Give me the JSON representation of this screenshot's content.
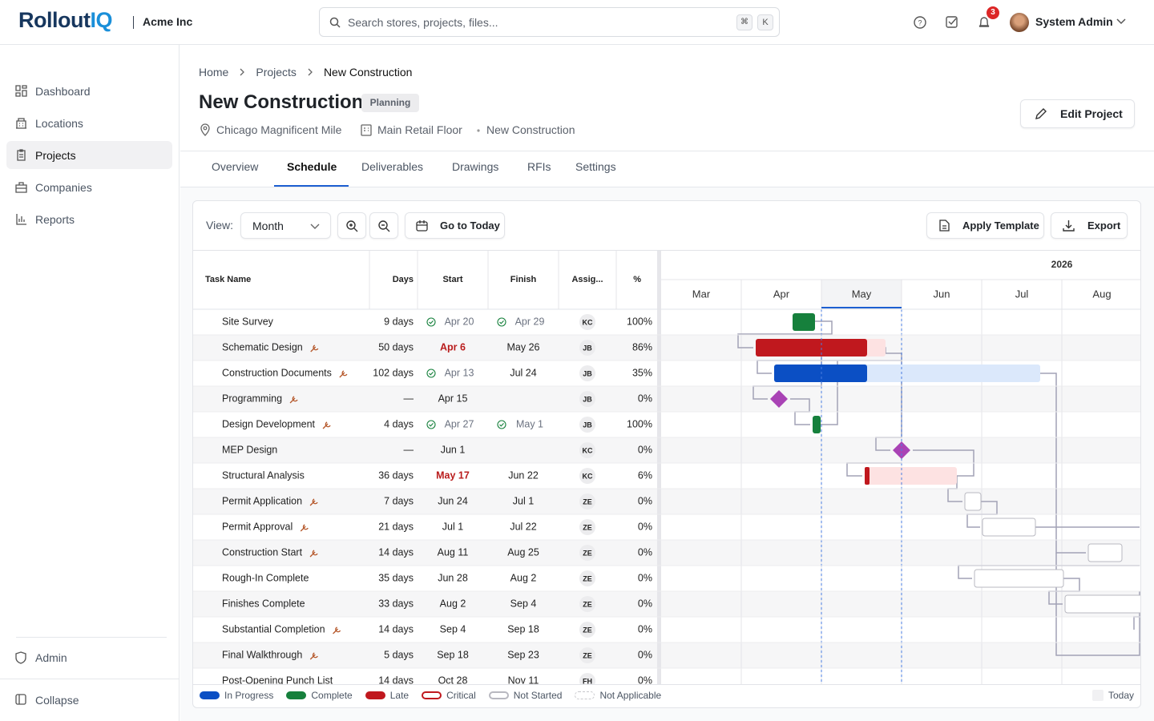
{
  "header": {
    "logo_main": "Rollout",
    "logo_accent": "IQ",
    "org": "Acme Inc",
    "search_placeholder": "Search stores, projects, files...",
    "shortcut": [
      "⌘",
      "K"
    ],
    "notification_count": 3,
    "user": "System Admin"
  },
  "sidebar": {
    "nav": [
      "Dashboard",
      "Locations",
      "Projects",
      "Companies",
      "Reports"
    ],
    "active": 2,
    "footer": [
      "Admin",
      "Collapse"
    ]
  },
  "breadcrumb": [
    "Home",
    "Projects",
    "New Construction"
  ],
  "project": {
    "title": "New Construction",
    "status": "Planning",
    "location": "Chicago Magnificent Mile",
    "area": "Main Retail Floor",
    "type": "New Construction",
    "edit_button": "Edit Project"
  },
  "tabs": {
    "items": [
      "Overview",
      "Schedule",
      "Deliverables",
      "Drawings",
      "RFIs",
      "Settings"
    ],
    "active": 1
  },
  "toolbar": {
    "view_label": "View:",
    "view": "Month",
    "today_button": "Go to Today",
    "template_button": "Apply Template",
    "export_button": "Export"
  },
  "schedule": {
    "columns": [
      "Task Name",
      "Days",
      "Start",
      "Finish",
      "Assig...",
      "%"
    ],
    "rows": [
      {
        "task": "Site Survey",
        "days": "9 days",
        "start": "Apr 20",
        "finish": "Apr 29",
        "assignee": "KC",
        "percent": "100%",
        "start_done": true,
        "finish_done": true
      },
      {
        "task": "Schematic Design",
        "days": "50 days",
        "start": "Apr 6",
        "finish": "May 26",
        "assignee": "JB",
        "percent": "86%",
        "wrench": true,
        "start_late": true
      },
      {
        "task": "Construction Documents",
        "days": "102 days",
        "start": "Apr 13",
        "finish": "Jul 24",
        "assignee": "JB",
        "percent": "35%",
        "wrench": true,
        "start_done": true
      },
      {
        "task": "Programming",
        "days": "—",
        "start": "Apr 15",
        "finish": null,
        "assignee": "JB",
        "percent": "0%",
        "wrench": true
      },
      {
        "task": "Design Development",
        "days": "4 days",
        "start": "Apr 27",
        "finish": "May 1",
        "assignee": "JB",
        "percent": "100%",
        "wrench": true,
        "start_done": true,
        "finish_done": true
      },
      {
        "task": "MEP Design",
        "days": "—",
        "start": "Jun 1",
        "finish": null,
        "assignee": "KC",
        "percent": "0%"
      },
      {
        "task": "Structural Analysis",
        "days": "36 days",
        "start": "May 17",
        "finish": "Jun 22",
        "assignee": "KC",
        "percent": "6%",
        "start_late": true
      },
      {
        "task": "Permit Application",
        "days": "7 days",
        "start": "Jun 24",
        "finish": "Jul 1",
        "assignee": "ZE",
        "percent": "0%",
        "wrench": true
      },
      {
        "task": "Permit Approval",
        "days": "21 days",
        "start": "Jul 1",
        "finish": "Jul 22",
        "assignee": "ZE",
        "percent": "0%",
        "wrench": true
      },
      {
        "task": "Construction Start",
        "days": "14 days",
        "start": "Aug 11",
        "finish": "Aug 25",
        "assignee": "ZE",
        "percent": "0%",
        "wrench": true
      },
      {
        "task": "Rough-In Complete",
        "days": "35 days",
        "start": "Jun 28",
        "finish": "Aug 2",
        "assignee": "ZE",
        "percent": "0%"
      },
      {
        "task": "Finishes Complete",
        "days": "33 days",
        "start": "Aug 2",
        "finish": "Sep 4",
        "assignee": "ZE",
        "percent": "0%"
      },
      {
        "task": "Substantial Completion",
        "days": "14 days",
        "start": "Sep 4",
        "finish": "Sep 18",
        "assignee": "ZE",
        "percent": "0%",
        "wrench": true
      },
      {
        "task": "Final Walkthrough",
        "days": "5 days",
        "start": "Sep 18",
        "finish": "Sep 23",
        "assignee": "ZE",
        "percent": "0%",
        "wrench": true
      },
      {
        "task": "Post-Opening Punch List",
        "days": "14 days",
        "start": "Oct 28",
        "finish": "Nov 11",
        "assignee": "FH",
        "percent": "0%"
      }
    ]
  },
  "timeline": {
    "year": "2026",
    "months": [
      "Mar",
      "Apr",
      "May",
      "Jun",
      "Jul",
      "Aug"
    ],
    "current": 2
  },
  "legend": [
    {
      "label": "In Progress",
      "color": "#0b4fc4"
    },
    {
      "label": "Complete",
      "color": "#16803c"
    },
    {
      "label": "Late",
      "color": "#c0181e"
    },
    {
      "label": "Critical",
      "color": "#c0181e",
      "outline": true
    },
    {
      "label": "Not Started",
      "color": "#b8b8c0",
      "outline": true
    },
    {
      "label": "Not Applicable",
      "color": "#c8c8cc",
      "outline": true,
      "dashed": true
    },
    {
      "label": "Today",
      "color": "#f1f1f3"
    }
  ]
}
